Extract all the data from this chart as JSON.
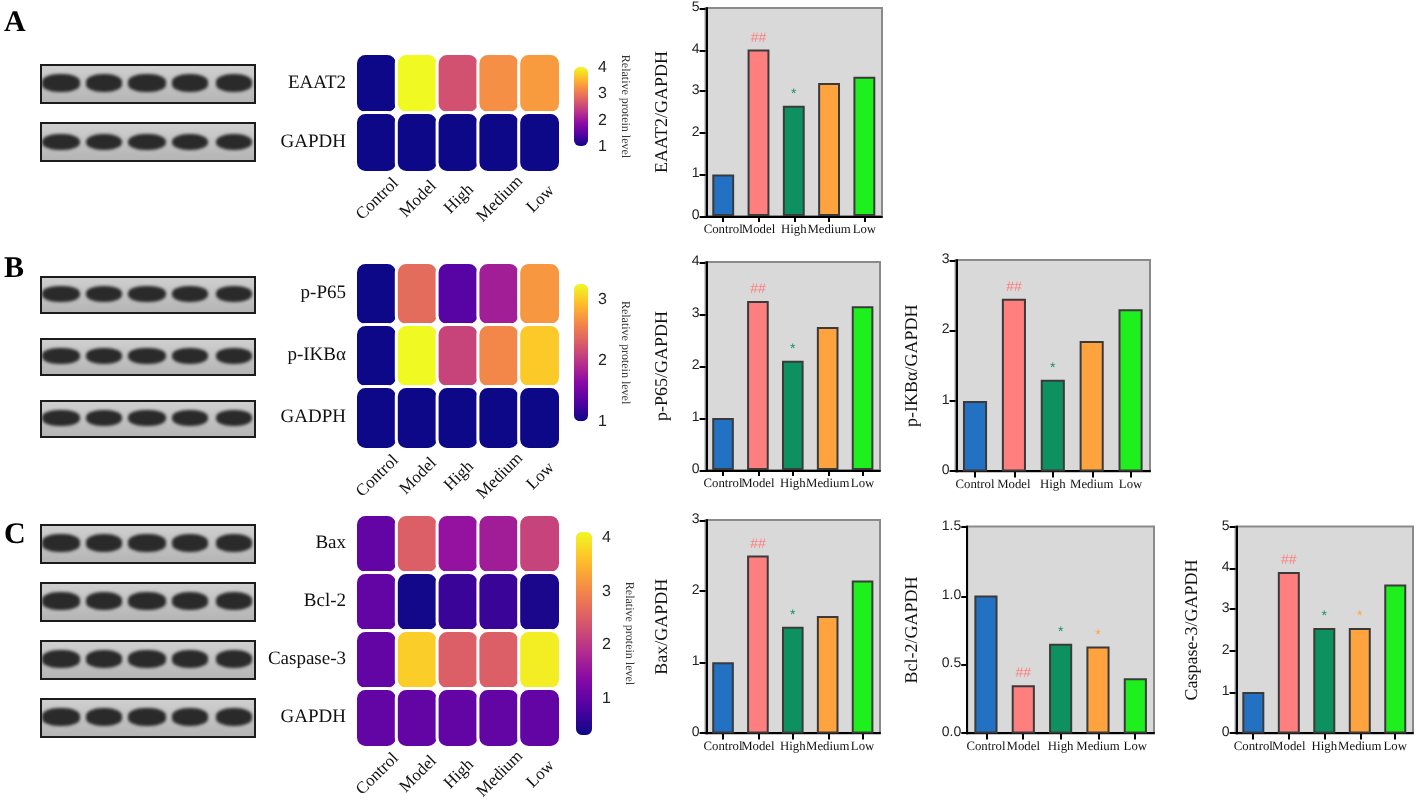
{
  "chart_data": [
    {
      "type": "heatmap",
      "annotations": [
        "A"
      ],
      "categories": [
        "Control",
        "Model",
        "High",
        "Medium",
        "Low"
      ],
      "y_categories": [
        "EAAT2",
        "GAPDH"
      ],
      "cells": [
        [
          1,
          4,
          2.6,
          3.2,
          3.3
        ],
        [
          1,
          1,
          1,
          1,
          1
        ]
      ],
      "clim": [
        1,
        4
      ],
      "cticks": [
        1,
        2,
        3,
        4
      ],
      "clabel": "Relative protein level"
    },
    {
      "type": "bar",
      "categories": [
        "Control",
        "Model",
        "High",
        "Medium",
        "Low"
      ],
      "values": [
        1,
        4,
        2.65,
        3.2,
        3.35
      ],
      "colors": [
        "#2271c3",
        "#ff7f7f",
        "#0e9160",
        "#ffa33e",
        "#1ef01e"
      ],
      "ylabel": "EAAT2/GAPDH",
      "ylim": [
        0,
        5
      ],
      "yticks": [
        0,
        1,
        2,
        3,
        4,
        5
      ],
      "annotations": [
        {
          "text": "##",
          "x": "Model",
          "y": 4
        },
        {
          "text": "*",
          "x": "High",
          "y": 2.65
        }
      ]
    },
    {
      "type": "heatmap",
      "annotations": [
        "B"
      ],
      "categories": [
        "Control",
        "Model",
        "High",
        "Medium",
        "Low"
      ],
      "y_categories": [
        "p-P65",
        "p-IKBα",
        "GADPH"
      ],
      "cells": [
        [
          1,
          2.4,
          1.35,
          1.8,
          2.7
        ],
        [
          1,
          3.25,
          2.1,
          2.6,
          3
        ],
        [
          1,
          1,
          1,
          1,
          1
        ]
      ],
      "clim": [
        1,
        3.25
      ],
      "cticks": [
        1,
        2,
        3
      ],
      "clabel": "Relative protein level"
    },
    {
      "type": "bar",
      "categories": [
        "Control",
        "Model",
        "High",
        "Medium",
        "Low"
      ],
      "values": [
        1,
        3.25,
        2.1,
        2.75,
        3.15
      ],
      "colors": [
        "#2271c3",
        "#ff7f7f",
        "#0e9160",
        "#ffa33e",
        "#1ef01e"
      ],
      "ylabel": "p-P65/GAPDH",
      "ylim": [
        0,
        4
      ],
      "yticks": [
        0,
        1,
        2,
        3,
        4
      ],
      "annotations": [
        {
          "text": "##",
          "x": "Model",
          "y": 3.25
        },
        {
          "text": "*",
          "x": "High",
          "y": 2.1
        }
      ]
    },
    {
      "type": "bar",
      "categories": [
        "Control",
        "Model",
        "High",
        "Medium",
        "Low"
      ],
      "values": [
        1,
        2.45,
        1.3,
        1.85,
        2.3
      ],
      "colors": [
        "#2271c3",
        "#ff7f7f",
        "#0e9160",
        "#ffa33e",
        "#1ef01e"
      ],
      "ylabel": "p-IKBα/GAPDH",
      "ylim": [
        0,
        3
      ],
      "yticks": [
        0,
        1,
        2,
        3
      ],
      "annotations": [
        {
          "text": "##",
          "x": "Model",
          "y": 2.45
        },
        {
          "text": "*",
          "x": "High",
          "y": 1.3
        }
      ]
    },
    {
      "type": "heatmap",
      "annotations": [
        "C"
      ],
      "categories": [
        "Control",
        "Model",
        "High",
        "Medium",
        "Low"
      ],
      "y_categories": [
        "Bax",
        "Bcl-2",
        "Caspase-3",
        "GAPDH"
      ],
      "cells": [
        [
          1,
          2.5,
          1.5,
          1.65,
          2.15
        ],
        [
          1,
          0.35,
          0.65,
          0.65,
          0.4
        ],
        [
          1,
          3.7,
          2.5,
          2.5,
          4
        ],
        [
          1,
          1,
          1,
          1,
          1
        ]
      ],
      "clim": [
        0.3,
        4.1
      ],
      "cticks": [
        1,
        2,
        3,
        4
      ],
      "clabel": "Relative protein level"
    },
    {
      "type": "bar",
      "categories": [
        "Control",
        "Model",
        "High",
        "Medium",
        "Low"
      ],
      "values": [
        1,
        2.5,
        1.5,
        1.65,
        2.15
      ],
      "colors": [
        "#2271c3",
        "#ff7f7f",
        "#0e9160",
        "#ffa33e",
        "#1ef01e"
      ],
      "ylabel": "Bax/GAPDH",
      "ylim": [
        0,
        3
      ],
      "yticks": [
        0,
        1,
        2,
        3
      ],
      "annotations": [
        {
          "text": "##",
          "x": "Model",
          "y": 2.5
        },
        {
          "text": "*",
          "x": "High",
          "y": 1.5
        }
      ]
    },
    {
      "type": "bar",
      "categories": [
        "Control",
        "Model",
        "High",
        "Medium",
        "Low"
      ],
      "values": [
        1,
        0.35,
        0.65,
        0.63,
        0.4
      ],
      "colors": [
        "#2271c3",
        "#ff7f7f",
        "#0e9160",
        "#ffa33e",
        "#1ef01e"
      ],
      "ylabel": "Bcl-2/GAPDH",
      "ylim": [
        0,
        1.5
      ],
      "yticks": [
        {
          "value": 0,
          "label": "0.0"
        },
        0.5,
        {
          "value": 1,
          "label": "1.0"
        },
        1.5
      ],
      "annotations": [
        {
          "text": "##",
          "x": "Model",
          "y": 0.35
        },
        {
          "text": "*",
          "x": "High",
          "y": 0.65
        },
        {
          "text": "*",
          "x": "Medium",
          "y": 0.63
        }
      ]
    },
    {
      "type": "bar",
      "categories": [
        "Control",
        "Model",
        "High",
        "Medium",
        "Low"
      ],
      "values": [
        1,
        3.9,
        2.55,
        2.55,
        3.6
      ],
      "colors": [
        "#2271c3",
        "#ff7f7f",
        "#0e9160",
        "#ffa33e",
        "#1ef01e"
      ],
      "ylabel": "Caspase-3/GAPDH",
      "ylim": [
        0,
        5
      ],
      "yticks": [
        0,
        1,
        2,
        3,
        4,
        5
      ],
      "annotations": [
        {
          "text": "##",
          "x": "Model",
          "y": 3.9
        },
        {
          "text": "*",
          "x": "High",
          "y": 2.55
        },
        {
          "text": "*",
          "x": "Medium",
          "y": 2.55
        }
      ]
    }
  ]
}
